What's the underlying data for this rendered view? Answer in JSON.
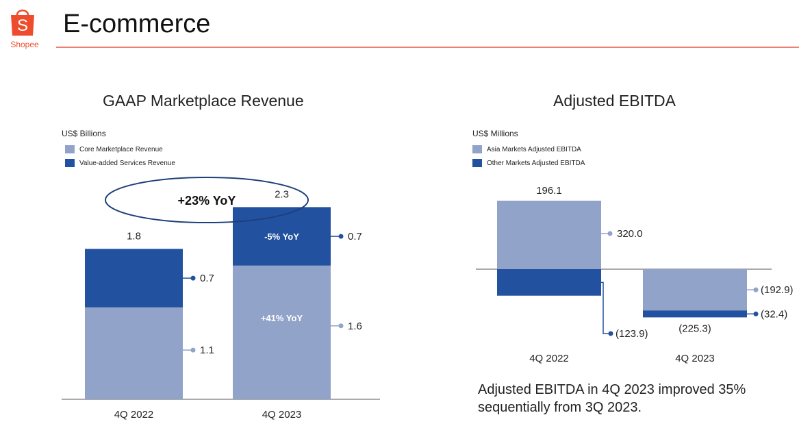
{
  "header": {
    "title": "E-commerce",
    "logo_text": "Shopee",
    "logo_letter": "S"
  },
  "colors": {
    "brand": "#ee4d2d",
    "light_bar": "#91a3c9",
    "dark_bar": "#2251a0",
    "rule": "#ee8070"
  },
  "chart_data": [
    {
      "type": "bar",
      "stacked": true,
      "title": "GAAP Marketplace Revenue",
      "unit": "US$ Billions",
      "categories": [
        "4Q 2022",
        "4Q 2023"
      ],
      "series": [
        {
          "name": "Core Marketplace Revenue",
          "values": [
            1.1,
            1.6
          ],
          "labels": [
            "1.1",
            "1.6"
          ],
          "inner_labels": [
            "",
            "+41% YoY"
          ]
        },
        {
          "name": "Value-added Services Revenue",
          "values": [
            0.7,
            0.7
          ],
          "labels": [
            "0.7",
            "0.7"
          ],
          "inner_labels": [
            "",
            "-5% YoY"
          ]
        }
      ],
      "totals": [
        "1.8",
        "2.3"
      ],
      "callout": "+23% YoY"
    },
    {
      "type": "bar",
      "stacked": true,
      "title": "Adjusted EBITDA",
      "unit": "US$ Millions",
      "categories": [
        "4Q 2022",
        "4Q 2023"
      ],
      "series": [
        {
          "name": "Asia Markets Adjusted EBITDA",
          "values": [
            320.0,
            -192.9
          ],
          "labels": [
            "320.0",
            "(192.9)"
          ]
        },
        {
          "name": "Other Markets Adjusted EBITDA",
          "values": [
            -123.9,
            -32.4
          ],
          "labels": [
            "(123.9)",
            "(32.4)"
          ]
        }
      ],
      "totals": [
        "196.1",
        "(225.3)"
      ],
      "note": "Adjusted EBITDA in 4Q 2023 improved 35% sequentially from 3Q 2023."
    }
  ]
}
